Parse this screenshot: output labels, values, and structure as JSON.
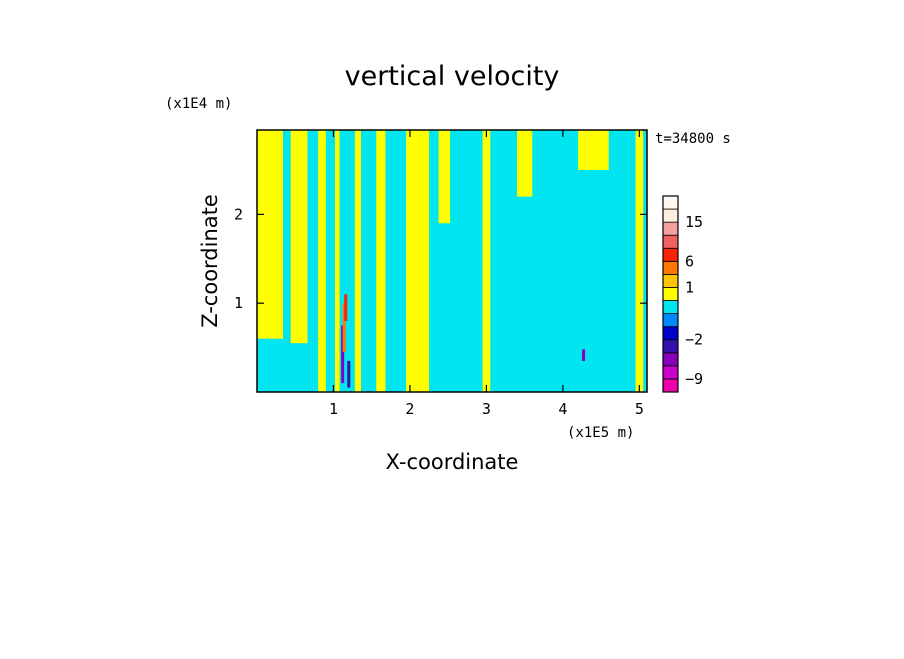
{
  "chart_data": {
    "type": "heatmap",
    "title": "vertical velocity",
    "xlabel": "X-coordinate",
    "ylabel": "Z-coordinate",
    "x_unit_label": "(x1E5 m)",
    "y_unit_label": "(x1E4 m)",
    "time_label": "t=34800 s",
    "xlim": [
      0,
      5.1
    ],
    "ylim": [
      0,
      2.95
    ],
    "x_ticks": [
      {
        "value": 1,
        "label": "1"
      },
      {
        "value": 2,
        "label": "2"
      },
      {
        "value": 3,
        "label": "3"
      },
      {
        "value": 4,
        "label": "4"
      },
      {
        "value": 5,
        "label": "5"
      }
    ],
    "y_ticks": [
      {
        "value": 1,
        "label": "1"
      },
      {
        "value": 2,
        "label": "2"
      }
    ],
    "background_color": "#00e5f0",
    "positive_color": "#ffff00",
    "colorbar": {
      "levels": [
        -12,
        -9,
        -6,
        -4,
        -2,
        -1,
        0,
        0.5,
        1,
        3,
        6,
        9,
        12,
        15,
        18,
        24
      ],
      "colors": [
        "#ee00aa",
        "#cc00cc",
        "#8800bb",
        "#3311aa",
        "#0000cc",
        "#0088ff",
        "#00e5f0",
        "#ffff00",
        "#ffc400",
        "#ff7700",
        "#ff2200",
        "#f06060",
        "#f8a0a0",
        "#fdeedd",
        "#fff7f0"
      ],
      "labels": [
        {
          "value": -9,
          "label": "−9"
        },
        {
          "value": -2,
          "label": "−2"
        },
        {
          "value": 1,
          "label": "1"
        },
        {
          "value": 6,
          "label": "6"
        },
        {
          "value": 15,
          "label": "15"
        }
      ]
    },
    "features": [
      {
        "kind": "updraft-band",
        "x_center": 0.15,
        "x_width": 0.38,
        "z_from": 0.6,
        "z_to": 2.95
      },
      {
        "kind": "updraft-band",
        "x_center": 0.55,
        "x_width": 0.22,
        "z_from": 0.55,
        "z_to": 2.95
      },
      {
        "kind": "updraft-band",
        "x_center": 0.85,
        "x_width": 0.1,
        "z_from": 0.0,
        "z_to": 2.95
      },
      {
        "kind": "updraft-band",
        "x_center": 1.05,
        "x_width": 0.06,
        "z_from": 0.0,
        "z_to": 2.95
      },
      {
        "kind": "updraft-band",
        "x_center": 1.32,
        "x_width": 0.08,
        "z_from": 0.0,
        "z_to": 2.95
      },
      {
        "kind": "updraft-band",
        "x_center": 1.62,
        "x_width": 0.12,
        "z_from": 0.0,
        "z_to": 2.95
      },
      {
        "kind": "updraft-band",
        "x_center": 2.1,
        "x_width": 0.3,
        "z_from": 0.0,
        "z_to": 2.95
      },
      {
        "kind": "updraft-band",
        "x_center": 2.45,
        "x_width": 0.15,
        "z_from": 1.9,
        "z_to": 2.95
      },
      {
        "kind": "updraft-band",
        "x_center": 3.0,
        "x_width": 0.1,
        "z_from": 0.0,
        "z_to": 2.95
      },
      {
        "kind": "updraft-band",
        "x_center": 3.5,
        "x_width": 0.2,
        "z_from": 2.2,
        "z_to": 2.95
      },
      {
        "kind": "updraft-band",
        "x_center": 4.4,
        "x_width": 0.4,
        "z_from": 2.5,
        "z_to": 2.95
      },
      {
        "kind": "updraft-band",
        "x_center": 5.0,
        "x_width": 0.1,
        "z_from": 0.0,
        "z_to": 2.95
      },
      {
        "kind": "downdraft-core",
        "x": 1.12,
        "z_from": 0.1,
        "z_to": 0.75,
        "value": -6
      },
      {
        "kind": "downdraft-core",
        "x": 1.2,
        "z_from": 0.05,
        "z_to": 0.35,
        "value": -4
      },
      {
        "kind": "downdraft-core",
        "x": 4.27,
        "z_from": 0.35,
        "z_to": 0.48,
        "value": -6
      },
      {
        "kind": "updraft-core",
        "x": 1.14,
        "z_from": 0.45,
        "z_to": 1.0,
        "value": 3
      },
      {
        "kind": "updraft-core",
        "x": 1.16,
        "z_from": 0.8,
        "z_to": 1.1,
        "value": 6
      }
    ]
  }
}
